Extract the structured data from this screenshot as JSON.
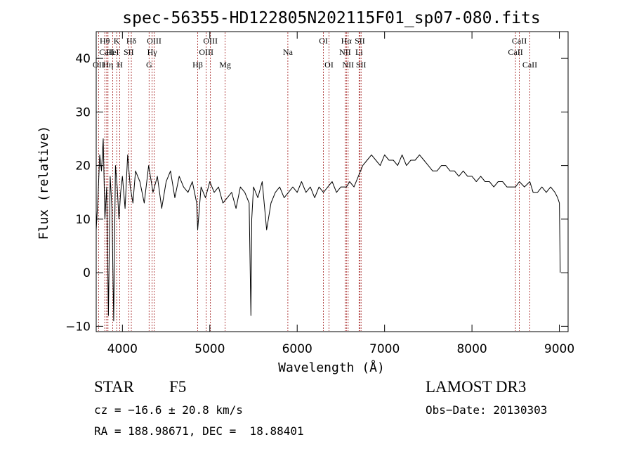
{
  "chart_data": {
    "type": "line",
    "title": "spec-56355-HD122805N202115F01_sp07-080.fits",
    "xlabel": "Wavelength (Å)",
    "ylabel": "Flux (relative)",
    "xlim": [
      3700,
      9100
    ],
    "ylim": [
      -11,
      45
    ],
    "xticks": [
      4000,
      5000,
      6000,
      7000,
      8000,
      9000
    ],
    "yticks": [
      -10,
      0,
      10,
      20,
      30,
      40
    ],
    "series": [
      {
        "name": "flux",
        "x": [
          3700,
          3720,
          3740,
          3760,
          3780,
          3800,
          3820,
          3840,
          3860,
          3880,
          3900,
          3920,
          3940,
          3960,
          3980,
          4000,
          4030,
          4060,
          4090,
          4120,
          4150,
          4200,
          4250,
          4300,
          4350,
          4400,
          4450,
          4500,
          4550,
          4600,
          4650,
          4700,
          4750,
          4800,
          4850,
          4861,
          4900,
          4950,
          5000,
          5050,
          5100,
          5150,
          5200,
          5250,
          5300,
          5350,
          5400,
          5450,
          5470,
          5480,
          5500,
          5550,
          5600,
          5650,
          5700,
          5750,
          5800,
          5850,
          5900,
          5950,
          6000,
          6050,
          6100,
          6150,
          6200,
          6250,
          6300,
          6350,
          6400,
          6450,
          6500,
          6563,
          6600,
          6650,
          6700,
          6750,
          6800,
          6850,
          6900,
          6950,
          7000,
          7050,
          7100,
          7150,
          7200,
          7250,
          7300,
          7350,
          7400,
          7450,
          7500,
          7550,
          7600,
          7650,
          7700,
          7750,
          7800,
          7850,
          7900,
          7950,
          8000,
          8050,
          8100,
          8150,
          8200,
          8250,
          8300,
          8350,
          8400,
          8450,
          8498,
          8542,
          8600,
          8662,
          8700,
          8750,
          8800,
          8850,
          8900,
          8950,
          8980,
          9000,
          9010
        ],
        "values": [
          8,
          14,
          22,
          19,
          25,
          10,
          16,
          -8,
          18,
          12,
          -9,
          20,
          16,
          10,
          15,
          18,
          12,
          22,
          16,
          13,
          19,
          17,
          13,
          20,
          15,
          18,
          12,
          17,
          19,
          14,
          18,
          16,
          15,
          17,
          13,
          8,
          16,
          14,
          17,
          15,
          16,
          13,
          14,
          15,
          12,
          16,
          15,
          13,
          -8,
          10,
          16,
          14,
          17,
          8,
          13,
          15,
          16,
          14,
          15,
          16,
          15,
          17,
          15,
          16,
          14,
          16,
          15,
          16,
          17,
          15,
          16,
          16,
          17,
          16,
          18,
          20,
          21,
          22,
          21,
          20,
          22,
          21,
          21,
          20,
          22,
          20,
          21,
          21,
          22,
          21,
          20,
          19,
          19,
          20,
          20,
          19,
          19,
          18,
          19,
          18,
          18,
          17,
          18,
          17,
          17,
          16,
          17,
          17,
          16,
          16,
          16,
          17,
          16,
          17,
          15,
          15,
          16,
          15,
          16,
          15,
          14,
          13,
          0
        ]
      }
    ],
    "lines": [
      {
        "label": "Hθ",
        "x": 3798,
        "row": 1
      },
      {
        "label": "CaII",
        "x": 3820,
        "row": 2
      },
      {
        "label": "OII",
        "x": 3727,
        "row": 3
      },
      {
        "label": "Hη",
        "x": 3835,
        "row": 3
      },
      {
        "label": "K",
        "x": 3934,
        "row": 1
      },
      {
        "label": "HeI",
        "x": 3889,
        "row": 2
      },
      {
        "label": "H",
        "x": 3970,
        "row": 3
      },
      {
        "label": "SII",
        "x": 4072,
        "row": 2
      },
      {
        "label": "Hδ",
        "x": 4102,
        "row": 1
      },
      {
        "label": "OIII",
        "x": 4363,
        "row": 1
      },
      {
        "label": "Hγ",
        "x": 4340,
        "row": 2
      },
      {
        "label": "G",
        "x": 4305,
        "row": 3
      },
      {
        "label": "Hβ",
        "x": 4861,
        "row": 3
      },
      {
        "label": "OIII",
        "x": 4959,
        "row": 2
      },
      {
        "label": "OIII",
        "x": 5007,
        "row": 1
      },
      {
        "label": "Mg",
        "x": 5175,
        "row": 3
      },
      {
        "label": "Na",
        "x": 5893,
        "row": 2
      },
      {
        "label": "OI",
        "x": 6300,
        "row": 1
      },
      {
        "label": "OI",
        "x": 6364,
        "row": 3
      },
      {
        "label": "NII",
        "x": 6548,
        "row": 2
      },
      {
        "label": "Hα",
        "x": 6563,
        "row": 1
      },
      {
        "label": "NII",
        "x": 6583,
        "row": 3
      },
      {
        "label": "Li",
        "x": 6708,
        "row": 2
      },
      {
        "label": "SII",
        "x": 6717,
        "row": 1
      },
      {
        "label": "SII",
        "x": 6731,
        "row": 3
      },
      {
        "label": "CaII",
        "x": 8498,
        "row": 2
      },
      {
        "label": "CaII",
        "x": 8542,
        "row": 1
      },
      {
        "label": "CaII",
        "x": 8662,
        "row": 3
      }
    ]
  },
  "info": {
    "object_type": "STAR",
    "subclass": "F5",
    "survey": "LAMOST DR3",
    "cz": "cz = −16.6 ± 20.8 km/s",
    "obs_date": "Obs−Date: 20130303",
    "coords": "RA = 188.98671, DEC =  18.88401"
  },
  "colors": {
    "line_marker": "#a01818",
    "spectrum": "#000000"
  }
}
